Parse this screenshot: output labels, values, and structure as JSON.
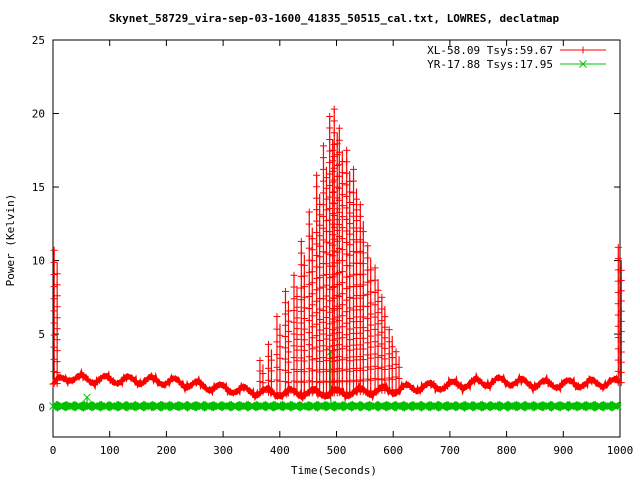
{
  "chart_data": {
    "type": "line",
    "title": "Skynet_58729_vira-sep-03-1600_41835_50515_cal.txt, LOWRES, declatmap",
    "xlabel": "Time(Seconds)",
    "ylabel": "Power (Kelvin)",
    "xlim": [
      0,
      1000
    ],
    "ylim": [
      -2,
      25
    ],
    "xticks": [
      0,
      100,
      200,
      300,
      400,
      500,
      600,
      700,
      800,
      900,
      1000
    ],
    "yticks": [
      0,
      5,
      10,
      15,
      20,
      25
    ],
    "grid": false,
    "legend_position": "top-right",
    "series": [
      {
        "name": "XL-58.09 Tsys:59.67",
        "color": "#ff0000",
        "marker": "plus",
        "baseline": [
          [
            0,
            1.6
          ],
          [
            30,
            2.1
          ],
          [
            60,
            1.9
          ],
          [
            100,
            1.9
          ],
          [
            200,
            1.8
          ],
          [
            300,
            1.3
          ],
          [
            350,
            1.1
          ],
          [
            400,
            1.0
          ],
          [
            500,
            1.0
          ],
          [
            600,
            1.2
          ],
          [
            650,
            1.4
          ],
          [
            700,
            1.5
          ],
          [
            750,
            1.7
          ],
          [
            800,
            1.8
          ],
          [
            850,
            1.6
          ],
          [
            900,
            1.6
          ],
          [
            1000,
            1.7
          ]
        ],
        "scan_peaks": [
          {
            "x": 2,
            "y": 10.7
          },
          {
            "x": 365,
            "y": 3.2
          },
          {
            "x": 380,
            "y": 4.3
          },
          {
            "x": 395,
            "y": 6.2
          },
          {
            "x": 410,
            "y": 7.9
          },
          {
            "x": 425,
            "y": 9.0
          },
          {
            "x": 438,
            "y": 11.3
          },
          {
            "x": 452,
            "y": 13.3
          },
          {
            "x": 465,
            "y": 15.8
          },
          {
            "x": 477,
            "y": 17.8
          },
          {
            "x": 488,
            "y": 19.8
          },
          {
            "x": 496,
            "y": 20.3
          },
          {
            "x": 505,
            "y": 19.0
          },
          {
            "x": 518,
            "y": 17.5
          },
          {
            "x": 530,
            "y": 16.2
          },
          {
            "x": 542,
            "y": 13.8
          },
          {
            "x": 555,
            "y": 11.0
          },
          {
            "x": 568,
            "y": 9.5
          },
          {
            "x": 580,
            "y": 7.5
          },
          {
            "x": 593,
            "y": 5.3
          },
          {
            "x": 605,
            "y": 3.8
          },
          {
            "x": 997,
            "y": 10.9
          }
        ]
      },
      {
        "name": "YR-17.88 Tsys:17.95",
        "color": "#00c000",
        "marker": "cross",
        "baseline": [
          [
            0,
            0.1
          ],
          [
            1000,
            0.1
          ]
        ],
        "spikes": [
          {
            "x": 60,
            "y": 0.7
          },
          {
            "x": 490,
            "y": 3.8
          }
        ]
      }
    ]
  }
}
